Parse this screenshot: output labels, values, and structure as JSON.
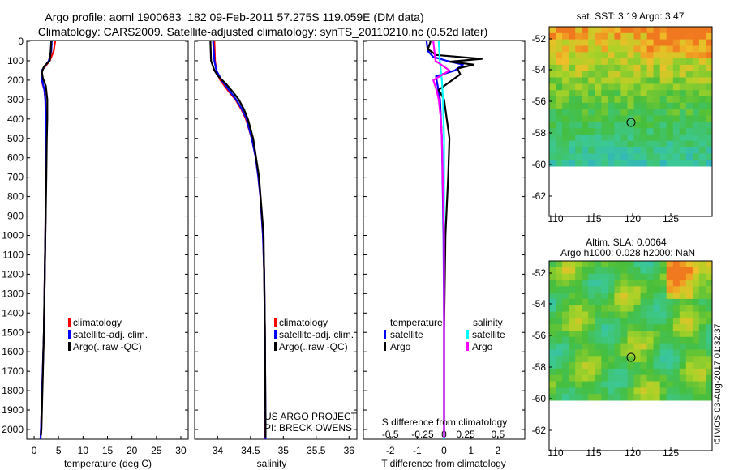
{
  "title": {
    "line1": "Argo profile: aoml 1900683_182 09-Feb-2011 57.275S 119.059E (DM data)",
    "line2": "Climatology: CARS2009. Satellite-adjusted climatology: synTS_20110210.nc (0.52d later)"
  },
  "colors": {
    "climatology": "#ff0000",
    "satellite": "#0000ff",
    "argo": "#000000",
    "sal_satellite": "#00ffff",
    "sal_argo": "#ff00ff"
  },
  "depth_ticks": [
    0,
    100,
    200,
    300,
    400,
    500,
    600,
    700,
    800,
    900,
    1000,
    1100,
    1200,
    1300,
    1400,
    1500,
    1600,
    1700,
    1800,
    1900,
    2000
  ],
  "temp_panel": {
    "xlabel": "temperature (deg C)",
    "xlim": [
      -1.5,
      31.5
    ],
    "xticks": [
      0,
      5,
      10,
      15,
      20,
      25,
      30
    ],
    "legend": [
      "climatology",
      "satellite-adj. clim.",
      "Argo(..raw -QC)"
    ]
  },
  "sal_panel": {
    "xlabel": "salinity",
    "xlim": [
      33.65,
      36.12
    ],
    "xticks": [
      34,
      34.5,
      35,
      35.5,
      36
    ],
    "legend": [
      "climatology",
      "satellite-adj. clim.",
      "Argo(..raw -QC)"
    ],
    "project_line1": "US ARGO PROJECT",
    "project_line2": "PI: BRECK OWENS"
  },
  "diff_panel": {
    "xlabel_bottom": "T difference from climatology",
    "xlabel_top": "S difference from climatology",
    "xlim": [
      -3.0,
      3.0
    ],
    "t_ticks": [
      -2,
      -1,
      0,
      1,
      2
    ],
    "s_tick_labels": [
      "-0.5",
      "-0.25",
      "0",
      "0.25",
      "0.5"
    ],
    "legend_temp_title": "temperature",
    "legend_sal_title": "salinity",
    "legend_temp": [
      "satellite",
      "Argo"
    ],
    "legend_sal": [
      "satellite",
      "Argo"
    ]
  },
  "map1": {
    "title": "sat. SST: 3.19 Argo: 3.47",
    "lat_ticks": [
      -52,
      -54,
      -56,
      -58,
      -60,
      -62
    ],
    "lon_ticks": [
      110,
      115,
      120,
      125
    ]
  },
  "map2": {
    "title_line1": "Altim. SLA: 0.0064",
    "title_line2": "Argo h1000: 0.028 h2000: NaN",
    "lat_ticks": [
      -52,
      -54,
      -56,
      -58,
      -60,
      -62
    ],
    "lon_ticks": [
      110,
      115,
      120,
      125
    ]
  },
  "credit": "©IMOS 03-Aug-2017 01:32:37",
  "chart_data": [
    {
      "type": "line",
      "panel": "temperature",
      "xlabel": "temperature (deg C)",
      "ylim": [
        2050,
        0
      ],
      "series": [
        {
          "name": "climatology",
          "depth": [
            0,
            50,
            100,
            150,
            200,
            250,
            300,
            400,
            500,
            700,
            1000,
            1500,
            2000,
            2050
          ],
          "values": [
            4.3,
            4.0,
            3.2,
            1.6,
            1.5,
            2.1,
            2.3,
            2.4,
            2.4,
            2.4,
            2.3,
            2.0,
            1.4,
            1.3
          ]
        },
        {
          "name": "satellite-adj. clim.",
          "depth": [
            0,
            50,
            100,
            150,
            200,
            250,
            300,
            400,
            500,
            700,
            1000,
            1500,
            2000,
            2050
          ],
          "values": [
            3.6,
            3.5,
            3.0,
            1.6,
            1.6,
            2.1,
            2.3,
            2.4,
            2.4,
            2.4,
            2.3,
            2.0,
            1.4,
            1.3
          ]
        },
        {
          "name": "Argo(..raw -QC)",
          "depth": [
            0,
            50,
            100,
            130,
            160,
            190,
            230,
            300,
            400,
            500,
            700,
            1000,
            1500,
            2000,
            2030
          ],
          "values": [
            3.5,
            3.4,
            3.2,
            2.0,
            1.6,
            1.8,
            2.4,
            2.7,
            2.7,
            2.6,
            2.5,
            2.3,
            2.0,
            1.5,
            1.4
          ]
        }
      ]
    },
    {
      "type": "line",
      "panel": "salinity",
      "xlabel": "salinity",
      "ylim": [
        2050,
        0
      ],
      "series": [
        {
          "name": "climatology",
          "depth": [
            0,
            100,
            150,
            200,
            250,
            300,
            350,
            400,
            500,
            600,
            700,
            800,
            1000,
            1200,
            1500,
            2000,
            2050
          ],
          "values": [
            33.95,
            33.96,
            33.98,
            34.04,
            34.15,
            34.27,
            34.36,
            34.43,
            34.52,
            34.58,
            34.62,
            34.65,
            34.69,
            34.71,
            34.72,
            34.72,
            34.72
          ]
        },
        {
          "name": "satellite-adj. clim.",
          "depth": [
            0,
            100,
            150,
            200,
            250,
            300,
            350,
            400,
            500,
            600,
            700,
            800,
            1000,
            1200,
            1500,
            2000,
            2050
          ],
          "values": [
            33.93,
            33.95,
            33.98,
            34.06,
            34.17,
            34.28,
            34.37,
            34.44,
            34.52,
            34.58,
            34.62,
            34.65,
            34.69,
            34.71,
            34.72,
            34.73,
            34.73
          ]
        },
        {
          "name": "Argo(..raw -QC)",
          "depth": [
            0,
            100,
            150,
            180,
            220,
            260,
            300,
            350,
            400,
            500,
            700,
            1000,
            1500,
            2000,
            2040
          ],
          "values": [
            33.89,
            33.9,
            33.95,
            34.01,
            34.13,
            34.23,
            34.32,
            34.4,
            34.46,
            34.54,
            34.63,
            34.7,
            34.72,
            34.73,
            34.73
          ]
        }
      ]
    },
    {
      "type": "line",
      "panel": "difference",
      "xlabel": "T difference from climatology",
      "ylim": [
        2050,
        0
      ],
      "series": [
        {
          "name": "temperature satellite",
          "depth": [
            0,
            50,
            80,
            100,
            120,
            150,
            180,
            220,
            300,
            500,
            1000,
            1500,
            2000,
            2050
          ],
          "values": [
            -0.65,
            -0.6,
            -0.4,
            0.1,
            0.7,
            0.4,
            -0.3,
            -0.25,
            -0.15,
            -0.08,
            -0.02,
            0.0,
            0.0,
            0.0
          ]
        },
        {
          "name": "temperature Argo",
          "depth": [
            0,
            40,
            70,
            90,
            105,
            120,
            140,
            170,
            200,
            250,
            300,
            400,
            500,
            700,
            1000,
            1500,
            2000,
            2030
          ],
          "values": [
            -0.5,
            -0.6,
            -0.3,
            1.4,
            0.2,
            1.1,
            0.5,
            0.6,
            0.3,
            -0.2,
            0.0,
            0.1,
            0.2,
            0.15,
            0.05,
            0.0,
            0.0,
            0.0
          ]
        },
        {
          "name": "salinity satellite",
          "depth": [
            0,
            100,
            200,
            300,
            500,
            1000,
            1500,
            2000,
            2050
          ],
          "values": [
            -0.05,
            -0.04,
            -0.02,
            -0.01,
            0.0,
            0.0,
            0.0,
            0.0,
            0.0
          ]
        },
        {
          "name": "salinity Argo",
          "depth": [
            0,
            100,
            150,
            200,
            250,
            300,
            400,
            500,
            1000,
            1500,
            2000,
            2040
          ],
          "values": [
            -0.1,
            -0.08,
            0.05,
            -0.1,
            -0.07,
            -0.05,
            -0.03,
            -0.02,
            0.0,
            0.0,
            0.0,
            0.0
          ]
        }
      ]
    }
  ]
}
